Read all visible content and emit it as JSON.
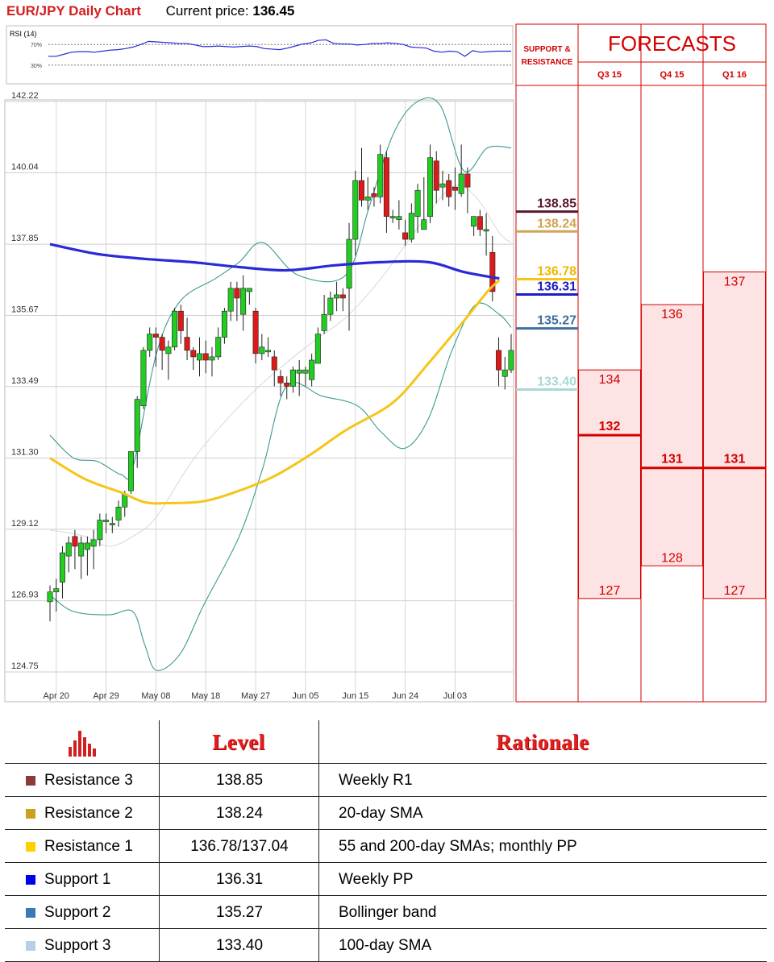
{
  "header": {
    "title": "EUR/JPY Daily Chart",
    "price_label": "Current price:",
    "price_value": "136.45"
  },
  "colors": {
    "title_red": "#d21f1f",
    "candle_up": "#22cc22",
    "candle_down": "#dd1a1a",
    "sma200": "#2a2ad6",
    "sma55": "#f5c518",
    "bollinger": "#3a9a90",
    "forecast_red": "#d40000",
    "forecast_fill": "#fde3e3"
  },
  "chart_data": [
    {
      "type": "line",
      "title": "RSI (14)",
      "ylim": [
        0,
        100
      ],
      "reference_lines": [
        {
          "label": "70%",
          "value": 70
        },
        {
          "label": "30%",
          "value": 30
        }
      ],
      "series": [
        {
          "name": "RSI (14)",
          "values": [
            47,
            47,
            51,
            55,
            56,
            56,
            55,
            57,
            59,
            60,
            62,
            65,
            70,
            76,
            75,
            74,
            73,
            72,
            72,
            69,
            66,
            66,
            67,
            66,
            65,
            66,
            67,
            66,
            62,
            61,
            60,
            63,
            67,
            71,
            73,
            78,
            79,
            72,
            71,
            71,
            69,
            70,
            72,
            72,
            73,
            72,
            70,
            65,
            64,
            63,
            57,
            55,
            57,
            56,
            47,
            58,
            55,
            56,
            57,
            57,
            57
          ]
        }
      ]
    },
    {
      "type": "candlestick",
      "ylim": [
        124.75,
        142.22
      ],
      "y_ticks": [
        "142.22",
        "140.04",
        "137.85",
        "135.67",
        "133.49",
        "131.30",
        "129.12",
        "126.93",
        "124.75"
      ],
      "x_tick_labels": [
        "Apr 20",
        "Apr 29",
        "May 08",
        "May 18",
        "May 27",
        "Jun 05",
        "Jun 15",
        "Jun 24",
        "Jul 03"
      ],
      "x_tick_index": [
        1,
        9,
        17,
        25,
        33,
        41,
        49,
        57,
        65
      ],
      "candles": [
        [
          126.9,
          127.2,
          127.4,
          126.3
        ],
        [
          127.2,
          127.3,
          127.6,
          126.6
        ],
        [
          127.5,
          128.4,
          128.6,
          127.0
        ],
        [
          128.3,
          128.7,
          128.9,
          127.8
        ],
        [
          128.9,
          128.6,
          129.1,
          127.9
        ],
        [
          128.3,
          128.7,
          128.9,
          127.6
        ],
        [
          128.5,
          128.7,
          128.9,
          127.7
        ],
        [
          128.6,
          128.8,
          129.1,
          127.9
        ],
        [
          128.8,
          129.4,
          129.6,
          128.6
        ],
        [
          129.4,
          129.4,
          129.6,
          129.0
        ],
        [
          129.3,
          129.3,
          129.5,
          129.0
        ],
        [
          129.4,
          129.8,
          130.0,
          129.2
        ],
        [
          129.8,
          130.2,
          130.3,
          129.5
        ],
        [
          130.3,
          131.5,
          131.5,
          130.2
        ],
        [
          131.5,
          133.1,
          133.2,
          131.0
        ],
        [
          132.9,
          134.6,
          134.7,
          132.8
        ],
        [
          134.6,
          135.1,
          135.3,
          134.4
        ],
        [
          135.1,
          135.0,
          135.3,
          134.1
        ],
        [
          135.0,
          134.6,
          135.1,
          134.0
        ],
        [
          134.5,
          134.7,
          134.9,
          133.7
        ],
        [
          134.7,
          135.8,
          135.9,
          134.6
        ],
        [
          135.8,
          135.2,
          136.0,
          134.8
        ],
        [
          135.0,
          134.6,
          135.6,
          134.3
        ],
        [
          134.6,
          134.4,
          134.7,
          134.0
        ],
        [
          134.3,
          134.5,
          135.0,
          133.8
        ],
        [
          134.5,
          134.3,
          134.9,
          133.9
        ],
        [
          134.3,
          134.4,
          134.7,
          133.8
        ],
        [
          134.4,
          135.0,
          135.3,
          134.3
        ],
        [
          135.0,
          135.8,
          135.9,
          134.8
        ],
        [
          135.8,
          136.5,
          136.7,
          135.5
        ],
        [
          136.5,
          136.2,
          136.7,
          135.5
        ],
        [
          135.7,
          136.5,
          136.9,
          135.2
        ],
        [
          136.4,
          136.5,
          136.5,
          136.0
        ],
        [
          135.8,
          134.5,
          135.9,
          134.2
        ],
        [
          134.5,
          134.7,
          135.1,
          134.3
        ],
        [
          134.6,
          134.6,
          135.0,
          134.4
        ],
        [
          134.4,
          134.0,
          134.6,
          133.5
        ],
        [
          133.8,
          133.6,
          134.0,
          133.2
        ],
        [
          133.6,
          133.5,
          133.8,
          133.1
        ],
        [
          133.5,
          134.0,
          134.1,
          133.3
        ],
        [
          133.9,
          134.0,
          134.3,
          133.2
        ],
        [
          133.9,
          134.0,
          134.1,
          133.5
        ],
        [
          133.7,
          134.3,
          134.5,
          133.5
        ],
        [
          134.2,
          135.1,
          135.3,
          134.2
        ],
        [
          135.2,
          135.7,
          136.3,
          135.1
        ],
        [
          135.7,
          136.2,
          136.4,
          135.5
        ],
        [
          136.2,
          136.3,
          136.7,
          135.8
        ],
        [
          136.3,
          136.2,
          136.5,
          135.8
        ],
        [
          136.5,
          138.0,
          138.5,
          135.2
        ],
        [
          138.0,
          139.8,
          140.1,
          137.5
        ],
        [
          139.8,
          139.2,
          140.8,
          139.0
        ],
        [
          139.2,
          139.3,
          139.9,
          138.9
        ],
        [
          139.4,
          139.3,
          139.6,
          139.0
        ],
        [
          139.3,
          140.6,
          140.9,
          139.1
        ],
        [
          140.5,
          138.7,
          140.7,
          138.2
        ],
        [
          138.7,
          138.7,
          138.9,
          138.5
        ],
        [
          138.6,
          138.7,
          139.2,
          138.3
        ],
        [
          138.2,
          138.0,
          138.6,
          137.8
        ],
        [
          138.0,
          138.8,
          139.1,
          137.9
        ],
        [
          138.7,
          139.5,
          139.7,
          138.2
        ],
        [
          138.3,
          138.6,
          139.9,
          138.3
        ],
        [
          138.7,
          140.5,
          140.9,
          138.5
        ],
        [
          140.4,
          139.5,
          140.7,
          139.1
        ],
        [
          139.6,
          139.7,
          140.1,
          139.2
        ],
        [
          139.8,
          139.3,
          140.0,
          139.0
        ],
        [
          139.6,
          139.5,
          140.2,
          138.9
        ],
        [
          139.4,
          140.0,
          140.9,
          139.3
        ],
        [
          140.0,
          139.6,
          140.2,
          138.8
        ],
        [
          138.4,
          138.7,
          138.7,
          138.1
        ],
        [
          138.7,
          138.3,
          138.9,
          138.1
        ],
        [
          138.3,
          138.3,
          138.8,
          137.5
        ],
        [
          137.6,
          136.4,
          138.1,
          136.1
        ],
        [
          134.6,
          134.0,
          135.0,
          133.5
        ],
        [
          133.8,
          134.0,
          134.4,
          133.4
        ],
        [
          134.0,
          134.6,
          135.1,
          133.9
        ]
      ],
      "series": [
        {
          "name": "200-day SMA",
          "points": [
            [
              0,
              137.85
            ],
            [
              8,
              137.55
            ],
            [
              16,
              137.4
            ],
            [
              24,
              137.3
            ],
            [
              32,
              137.15
            ],
            [
              40,
              137.05
            ],
            [
              48,
              137.2
            ],
            [
              56,
              137.3
            ],
            [
              64,
              137.3
            ],
            [
              70,
              137.0
            ],
            [
              76,
              136.8
            ]
          ]
        },
        {
          "name": "55-day SMA",
          "points": [
            [
              0,
              131.3
            ],
            [
              6,
              130.65
            ],
            [
              12,
              130.25
            ],
            [
              16,
              129.95
            ],
            [
              20,
              129.92
            ],
            [
              26,
              129.98
            ],
            [
              32,
              130.3
            ],
            [
              38,
              130.75
            ],
            [
              44,
              131.4
            ],
            [
              50,
              132.15
            ],
            [
              58,
              133.0
            ],
            [
              64,
              134.2
            ],
            [
              70,
              135.5
            ],
            [
              74,
              136.4
            ],
            [
              76,
              136.75
            ]
          ]
        },
        {
          "name": "Bollinger upper",
          "points": [
            [
              0,
              132.0
            ],
            [
              4,
              131.3
            ],
            [
              8,
              131.2
            ],
            [
              12,
              130.8
            ],
            [
              14,
              131.0
            ],
            [
              18,
              134.5
            ],
            [
              22,
              136.1
            ],
            [
              28,
              136.8
            ],
            [
              32,
              137.3
            ],
            [
              36,
              137.9
            ],
            [
              42,
              136.9
            ],
            [
              50,
              136.9
            ],
            [
              54,
              139.0
            ],
            [
              58,
              141.2
            ],
            [
              62,
              142.2
            ],
            [
              66,
              142.1
            ],
            [
              70,
              140.1
            ],
            [
              74,
              140.8
            ],
            [
              78,
              140.8
            ]
          ]
        },
        {
          "name": "Bollinger lower",
          "points": [
            [
              0,
              127.1
            ],
            [
              4,
              126.6
            ],
            [
              10,
              126.5
            ],
            [
              14,
              126.6
            ],
            [
              16,
              125.6
            ],
            [
              18,
              124.8
            ],
            [
              22,
              125.3
            ],
            [
              26,
              126.8
            ],
            [
              32,
              128.9
            ],
            [
              36,
              131.0
            ],
            [
              40,
              133.5
            ],
            [
              46,
              133.2
            ],
            [
              52,
              132.9
            ],
            [
              56,
              132.1
            ],
            [
              60,
              131.6
            ],
            [
              64,
              132.5
            ],
            [
              68,
              134.6
            ],
            [
              72,
              136.0
            ],
            [
              76,
              135.7
            ],
            [
              78,
              135.3
            ]
          ]
        },
        {
          "name": "Bollinger middle",
          "points": [
            [
              0,
              129.1
            ],
            [
              6,
              128.9
            ],
            [
              10,
              128.6
            ],
            [
              14,
              128.9
            ],
            [
              18,
              129.5
            ],
            [
              24,
              131.2
            ],
            [
              30,
              132.5
            ],
            [
              36,
              133.6
            ],
            [
              44,
              134.8
            ],
            [
              50,
              135.6
            ],
            [
              56,
              136.8
            ],
            [
              62,
              138.3
            ],
            [
              68,
              139.6
            ],
            [
              72,
              139.3
            ],
            [
              76,
              138.2
            ],
            [
              78,
              137.9
            ]
          ]
        }
      ]
    },
    {
      "type": "table",
      "title": "FORECASTS",
      "side_header": "SUPPORT & RESISTANCE",
      "levels": [
        {
          "value": "138.85",
          "num": 138.85,
          "color": "#5a1832",
          "text_color": "#5a1832"
        },
        {
          "value": "138.24",
          "num": 138.24,
          "color": "#d1a456",
          "text_color": "#d1a456"
        },
        {
          "value": "136.78",
          "num": 136.78,
          "color": "#f5c518",
          "text_color": "#f0b800"
        },
        {
          "value": "136.31",
          "num": 136.31,
          "color": "#1c1cc8",
          "text_color": "#1c1cc8"
        },
        {
          "value": "135.27",
          "num": 135.27,
          "color": "#3f6f9e",
          "text_color": "#3f6f9e"
        },
        {
          "value": "133.40",
          "num": 133.4,
          "color": "#a8d8d8",
          "text_color": "#a8d8d8"
        }
      ],
      "columns": [
        {
          "label": "Q3 15",
          "high": 134,
          "high_label": "134",
          "mid": 132,
          "mid_label": "132",
          "low": 127,
          "low_label": "127"
        },
        {
          "label": "Q4 15",
          "high": 136,
          "high_label": "136",
          "mid": 131,
          "mid_label": "131",
          "low": 128,
          "low_label": "128"
        },
        {
          "label": "Q1 16",
          "high": 137,
          "high_label": "137",
          "mid": 131,
          "mid_label": "131",
          "low": 127,
          "low_label": "127"
        }
      ]
    }
  ],
  "levels_table": {
    "headers": {
      "level": "Level",
      "rationale": "Rationale"
    },
    "rows": [
      {
        "name": "Resistance 3",
        "level": "138.85",
        "rationale": "Weekly R1",
        "swatch": "#8b3a3a"
      },
      {
        "name": "Resistance 2",
        "level": "138.24",
        "rationale": "20-day SMA",
        "swatch": "#c9a020"
      },
      {
        "name": "Resistance 1",
        "level": "136.78/137.04",
        "rationale": "55 and 200-day SMAs; monthly PP",
        "swatch": "#ffd000"
      },
      {
        "name": "Support 1",
        "level": "136.31",
        "rationale": "Weekly PP",
        "swatch": "#0000ee"
      },
      {
        "name": "Support 2",
        "level": "135.27",
        "rationale": "Bollinger band",
        "swatch": "#3b78b8"
      },
      {
        "name": "Support 3",
        "level": "133.40",
        "rationale": "100-day SMA",
        "swatch": "#b8cde6"
      }
    ]
  }
}
